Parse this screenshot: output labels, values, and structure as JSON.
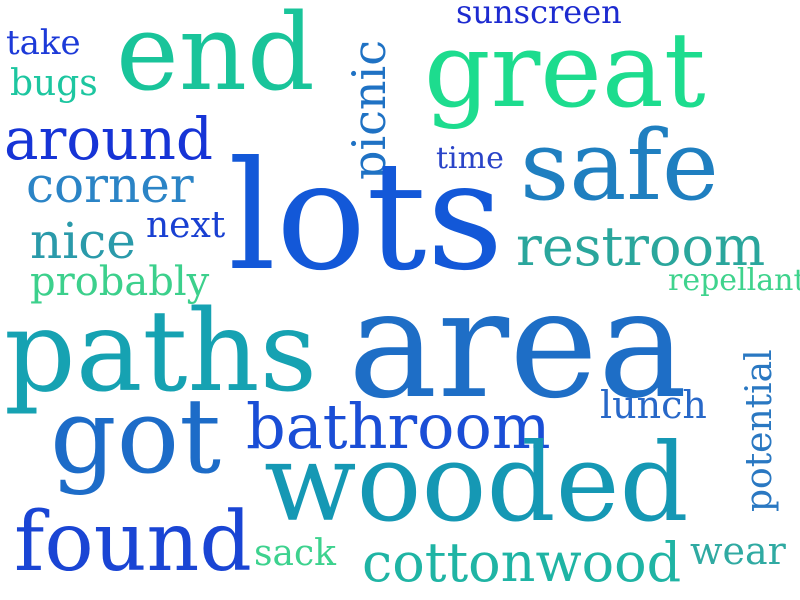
{
  "words": {
    "sunscreen": {
      "text": "sunscreen",
      "color": "#1d2bd0"
    },
    "take": {
      "text": "take",
      "color": "#1d3ad8"
    },
    "end": {
      "text": "end",
      "color": "#19c49a"
    },
    "picnic": {
      "text": "picnic",
      "color": "#1f72c4"
    },
    "great": {
      "text": "great",
      "color": "#1ddc8e"
    },
    "bugs": {
      "text": "bugs",
      "color": "#1dc6a0"
    },
    "around": {
      "text": "around",
      "color": "#1634d6"
    },
    "time": {
      "text": "time",
      "color": "#2a44c8"
    },
    "safe": {
      "text": "safe",
      "color": "#1f7fc0"
    },
    "corner": {
      "text": "corner",
      "color": "#2b84c6"
    },
    "lots": {
      "text": "lots",
      "color": "#1358d8"
    },
    "next": {
      "text": "next",
      "color": "#1940d2"
    },
    "nice": {
      "text": "nice",
      "color": "#2a9aaa"
    },
    "restroom": {
      "text": "restroom",
      "color": "#2aa69c"
    },
    "probably": {
      "text": "probably",
      "color": "#3cd08c"
    },
    "repellant": {
      "text": "repellant",
      "color": "#3fd38d"
    },
    "paths": {
      "text": "paths",
      "color": "#16a2b2"
    },
    "area": {
      "text": "area",
      "color": "#1e6ec6"
    },
    "potential": {
      "text": "potential",
      "color": "#2a78c2"
    },
    "lunch": {
      "text": "lunch",
      "color": "#2868c8"
    },
    "bathroom": {
      "text": "bathroom",
      "color": "#1a4ed6"
    },
    "got": {
      "text": "got",
      "color": "#1d6cc8"
    },
    "wooded": {
      "text": "wooded",
      "color": "#1598b4"
    },
    "found": {
      "text": "found",
      "color": "#1a45d4"
    },
    "sack": {
      "text": "sack",
      "color": "#3dd28e"
    },
    "cottonwood": {
      "text": "cottonwood",
      "color": "#1fb4a4"
    },
    "wear": {
      "text": "wear",
      "color": "#30aaa2"
    }
  }
}
